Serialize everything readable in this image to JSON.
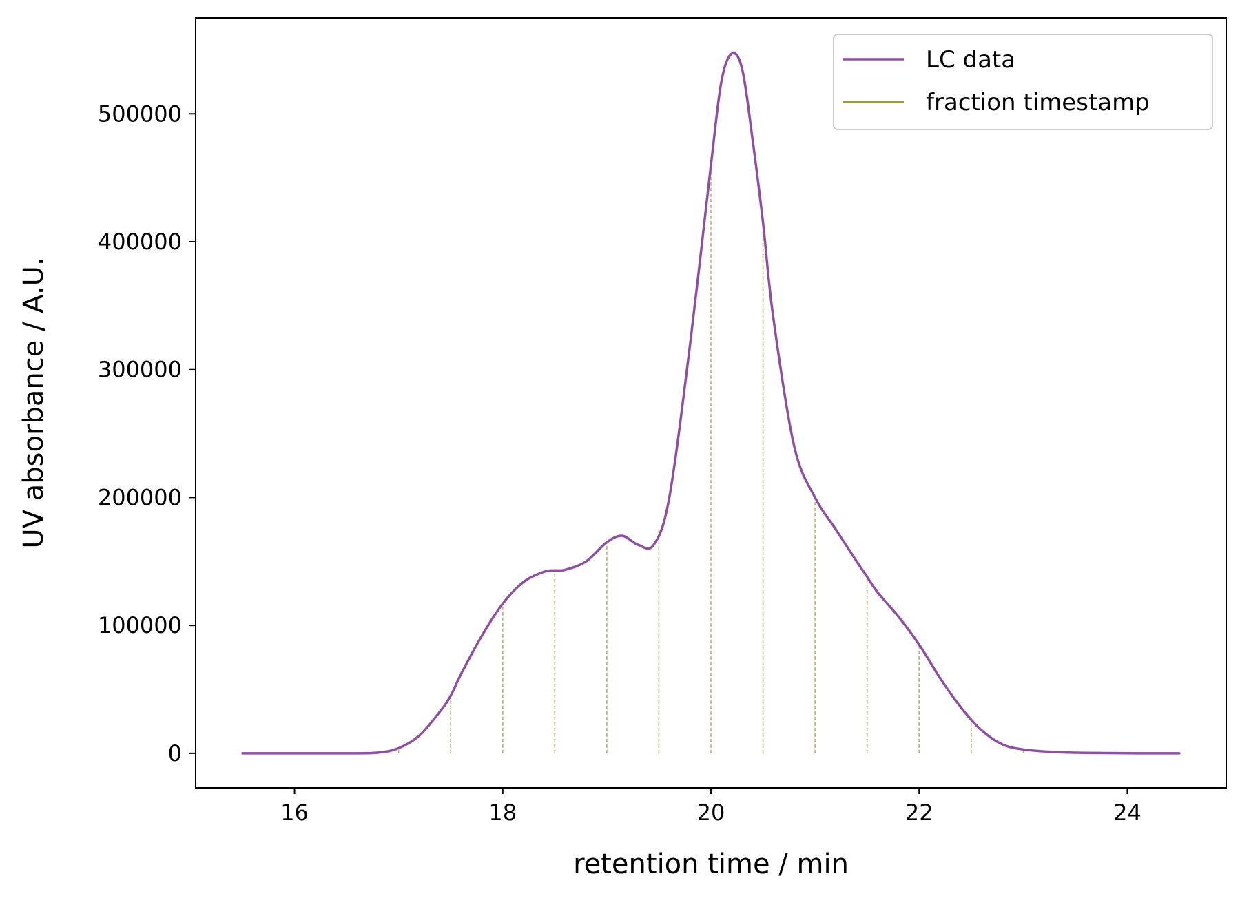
{
  "chart_data": {
    "type": "line",
    "xlabel": "retention time / min",
    "ylabel": "UV absorbance / A.U.",
    "xlim": [
      15.05,
      24.95
    ],
    "ylim": [
      -27000,
      575000
    ],
    "x_ticks": [
      16,
      18,
      20,
      22,
      24
    ],
    "y_ticks": [
      0,
      100000,
      200000,
      300000,
      400000,
      500000
    ],
    "grid": false,
    "legend_position": "top-right",
    "series": [
      {
        "name": "LC data",
        "color": "#8e4fa3",
        "style": "solid",
        "x": [
          15.5,
          16.0,
          16.5,
          16.8,
          17.0,
          17.2,
          17.4,
          17.5,
          17.6,
          17.8,
          18.0,
          18.2,
          18.4,
          18.5,
          18.6,
          18.8,
          19.0,
          19.15,
          19.3,
          19.45,
          19.6,
          19.8,
          20.0,
          20.1,
          20.2,
          20.3,
          20.4,
          20.5,
          20.6,
          20.8,
          21.0,
          21.2,
          21.4,
          21.5,
          21.6,
          21.8,
          22.0,
          22.2,
          22.4,
          22.6,
          22.8,
          23.0,
          23.3,
          23.6,
          24.0,
          24.5
        ],
        "y": [
          0,
          0,
          0,
          500,
          4000,
          14000,
          33000,
          45000,
          62000,
          92000,
          117000,
          134000,
          142000,
          143000,
          143500,
          150000,
          165000,
          170000,
          163000,
          163000,
          200000,
          320000,
          460000,
          525000,
          547000,
          535000,
          480000,
          415000,
          340000,
          240000,
          200000,
          175000,
          150000,
          138000,
          126000,
          107000,
          85000,
          59000,
          36000,
          18000,
          7000,
          3000,
          1000,
          300,
          50,
          0
        ]
      },
      {
        "name": "fraction timestamp",
        "color": "#9a9a42",
        "style": "dashed",
        "x": [
          17.0,
          17.5,
          18.0,
          18.5,
          19.0,
          19.5,
          20.0,
          20.5,
          21.0,
          21.5,
          22.0,
          22.5,
          23.0
        ]
      }
    ]
  }
}
